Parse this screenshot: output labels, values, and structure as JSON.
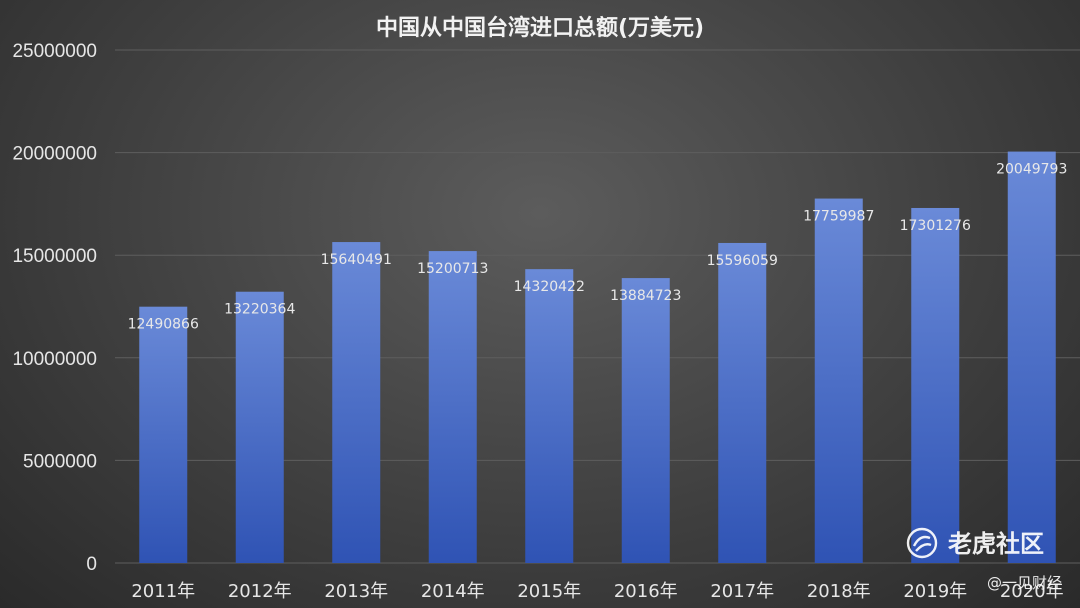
{
  "chart_data": {
    "type": "bar",
    "title": "中国从中国台湾进口总额(万美元)",
    "xlabel": "",
    "ylabel": "",
    "categories": [
      "2011年",
      "2012年",
      "2013年",
      "2014年",
      "2015年",
      "2016年",
      "2017年",
      "2018年",
      "2019年",
      "2020年"
    ],
    "values": [
      12490866,
      13220364,
      15640491,
      15200713,
      14320422,
      13884723,
      15596059,
      17759987,
      17301276,
      20049793
    ],
    "data_labels": [
      "12490866",
      "13220364",
      "15640491",
      "15200713",
      "14320422",
      "13884723",
      "15596059",
      "17759987",
      "17301276",
      "20049793"
    ],
    "ylim": [
      0,
      25000000
    ],
    "yticks": [
      0,
      5000000,
      10000000,
      15000000,
      20000000,
      25000000
    ],
    "ytick_labels": [
      "0",
      "5000000",
      "10000000",
      "15000000",
      "20000000",
      "25000000"
    ],
    "grid": true,
    "legend": "none",
    "colors": {
      "bar_top": "#6a8ad8",
      "bar_bottom": "#2f53b4",
      "grid": "#5e5e5e"
    }
  },
  "watermarks": {
    "brand": "老虎社区",
    "brand_icon": "tiger-community-logo-icon",
    "source": "@一见财经"
  }
}
